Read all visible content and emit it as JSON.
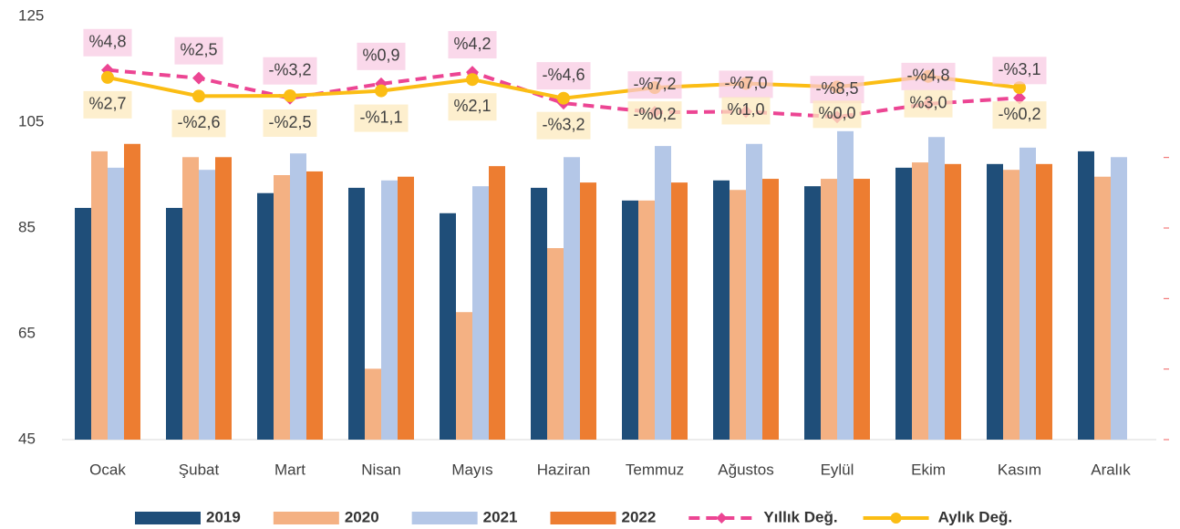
{
  "chart_data": {
    "type": "bar",
    "categories": [
      "Ocak",
      "Şubat",
      "Mart",
      "Nisan",
      "Mayıs",
      "Haziran",
      "Temmuz",
      "Ağustos",
      "Eylül",
      "Ekim",
      "Kasım",
      "Aralık"
    ],
    "series": [
      {
        "name": "2019",
        "color": "#1f4e79",
        "values": [
          88.8,
          88.8,
          91.6,
          92.6,
          87.8,
          92.6,
          90.2,
          94.0,
          92.9,
          96.4,
          97.1,
          99.5
        ]
      },
      {
        "name": "2020",
        "color": "#f4b183",
        "values": [
          99.5,
          98.4,
          95.0,
          58.4,
          69.1,
          81.2,
          90.2,
          92.2,
          94.3,
          97.4,
          96.0,
          94.7
        ]
      },
      {
        "name": "2021",
        "color": "#b4c7e7",
        "values": [
          96.4,
          96.0,
          99.1,
          94.0,
          92.9,
          98.4,
          100.5,
          100.9,
          103.3,
          102.2,
          100.2,
          98.4
        ]
      },
      {
        "name": "2022",
        "color": "#ed7d31",
        "values": [
          100.9,
          98.4,
          95.7,
          94.7,
          96.7,
          93.6,
          93.6,
          94.3,
          94.3,
          97.1,
          97.1,
          null
        ]
      },
      {
        "name": "Yıllık Değ.",
        "type": "line",
        "axis": "y2",
        "color": "#ec4593",
        "dashed": true,
        "marker": "diamond",
        "values": [
          4.8,
          2.5,
          -3.2,
          0.9,
          4.2,
          -4.6,
          -7.2,
          -7.0,
          -8.5,
          -4.8,
          -3.1,
          null
        ],
        "value_labels": [
          "%4,8",
          "%2,5",
          "-%3,2",
          "%0,9",
          "%4,2",
          "-%4,6",
          "-%7,2",
          "-%7,0",
          "-%8,5",
          "-%4,8",
          "-%3,1",
          null
        ]
      },
      {
        "name": "Aylık Değ.",
        "type": "line",
        "axis": "y2",
        "color": "#fbbd14",
        "dashed": false,
        "marker": "circle",
        "values": [
          2.7,
          -2.6,
          -2.5,
          -1.1,
          2.1,
          -3.2,
          -0.2,
          1.0,
          0.0,
          3.0,
          -0.2,
          null
        ],
        "value_labels": [
          "%2,7",
          "-%2,6",
          "-%2,5",
          "-%1,1",
          "%2,1",
          "-%3,2",
          "-%0,2",
          "%1,0",
          "%0,0",
          "%3,0",
          "-%0,2",
          null
        ]
      }
    ],
    "ylim": [
      45,
      125
    ],
    "yticks": [
      45,
      65,
      85,
      105,
      125
    ],
    "ytick_colors": [
      "#e00000",
      "#e00000",
      "#e00000",
      "#000000",
      "#000000"
    ],
    "y2lim": [
      -100,
      20
    ],
    "y2ticks": [
      -100,
      -80,
      -60,
      -40,
      -20
    ],
    "legend": "bottom"
  }
}
